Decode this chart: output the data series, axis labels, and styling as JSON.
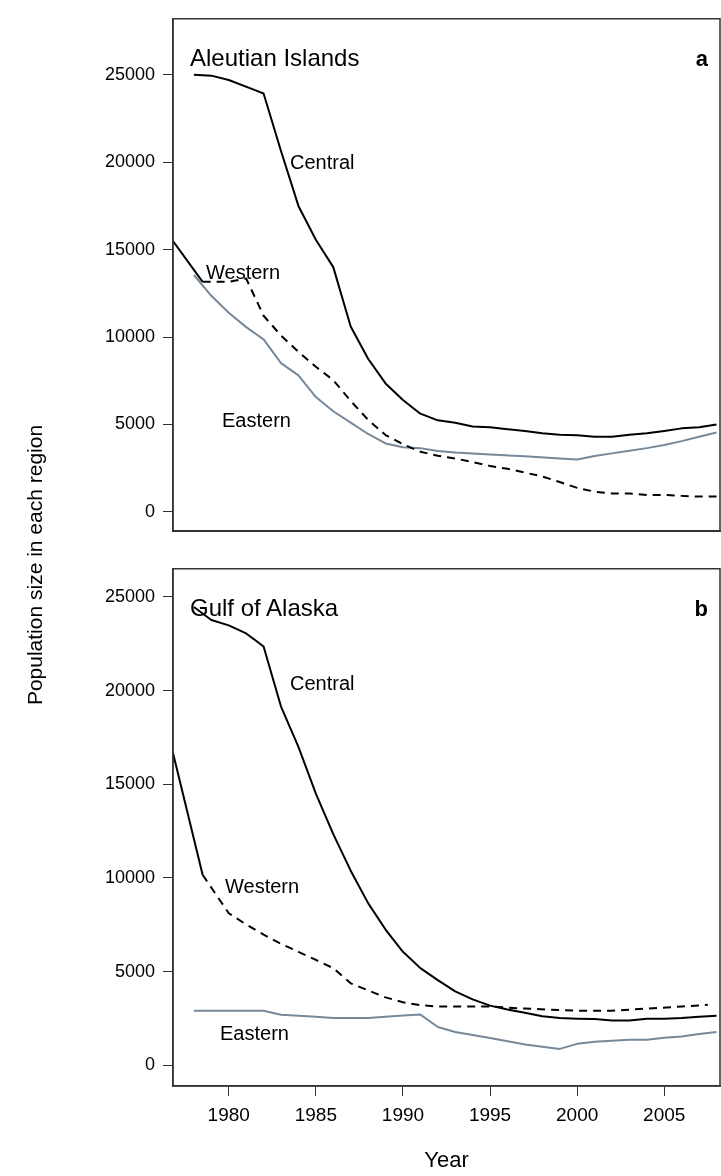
{
  "chart_data": [
    {
      "type": "line",
      "title": "Aleutian Islands",
      "ylabel": "Population size in each region",
      "annotations": [
        "a"
      ],
      "xlim": [
        1976.8,
        2008.2
      ],
      "xticks": [
        1980,
        1985,
        1990,
        1995,
        2000,
        2005
      ],
      "ylim": [
        -1100,
        28200
      ],
      "yticks": [
        0,
        5000,
        10000,
        15000,
        20000,
        25000
      ],
      "grid": false,
      "legend": false,
      "tick_labels": "y",
      "marker": "none",
      "series": [
        {
          "name": "Central",
          "color": "#000000",
          "line_style": "solid",
          "x": [
            1978,
            1979,
            1980,
            1982,
            1983,
            1984,
            1985,
            1986,
            1987,
            1988,
            1989,
            1990,
            1991,
            1992,
            1993,
            1994,
            1995,
            1996,
            1997,
            1998,
            1999,
            2000,
            2001,
            2002,
            2003,
            2004,
            2005,
            2006,
            2007,
            2008
          ],
          "values": [
            25000,
            24950,
            24700,
            23930,
            20640,
            17500,
            15570,
            14000,
            10600,
            8760,
            7350,
            6400,
            5620,
            5240,
            5100,
            4890,
            4840,
            4730,
            4630,
            4500,
            4410,
            4380,
            4300,
            4300,
            4410,
            4500,
            4630,
            4780,
            4850,
            5000
          ]
        },
        {
          "name": "Western",
          "color": "#000000",
          "line_style": "dashed",
          "x": [
            1978.5,
            1980,
            1981,
            1982,
            1983,
            1984,
            1985,
            1986,
            1987,
            1988,
            1989,
            1990,
            1991,
            1992,
            1993,
            1994,
            1995,
            1996,
            1997,
            1998,
            1999,
            2000,
            2001,
            2002,
            2003,
            2004,
            2005,
            2006,
            2007,
            2008
          ],
          "values": [
            13160,
            13160,
            13350,
            11220,
            10090,
            9160,
            8300,
            7540,
            6350,
            5270,
            4400,
            3870,
            3440,
            3220,
            3060,
            2850,
            2630,
            2470,
            2250,
            2030,
            1710,
            1380,
            1160,
            1060,
            1060,
            970,
            970,
            920,
            880,
            880
          ]
        },
        {
          "color": "#000000",
          "line_style": "solid",
          "x": [
            1976.8,
            1978.5
          ],
          "values": [
            15490,
            13160
          ]
        },
        {
          "name": "Eastern",
          "color": "#778899",
          "line_style": "solid",
          "x": [
            1978,
            1979,
            1980,
            1981,
            1982,
            1983,
            1984,
            1985,
            1986,
            1987,
            1988,
            1989,
            1990,
            1991,
            1992,
            1993,
            1995,
            1997,
            1999,
            2000,
            2001,
            2002,
            2003,
            2004,
            2005,
            2006,
            2007,
            2008
          ],
          "values": [
            13550,
            12360,
            11390,
            10570,
            9870,
            8510,
            7810,
            6570,
            5760,
            5110,
            4460,
            3920,
            3700,
            3650,
            3480,
            3400,
            3290,
            3180,
            3060,
            3000,
            3200,
            3350,
            3500,
            3650,
            3830,
            4050,
            4300,
            4540
          ]
        }
      ]
    },
    {
      "type": "line",
      "title": "Gulf of Alaska",
      "xlabel": "Year",
      "annotations": [
        "b"
      ],
      "xlim": [
        1976.8,
        2008.2
      ],
      "xticks": [
        1980,
        1985,
        1990,
        1995,
        2000,
        2005
      ],
      "ylim": [
        -1100,
        26500
      ],
      "yticks": [
        0,
        5000,
        10000,
        15000,
        20000,
        25000
      ],
      "grid": false,
      "legend": false,
      "marker": "none",
      "series": [
        {
          "name": "Central",
          "color": "#000000",
          "line_style": "solid",
          "x": [
            1978,
            1979,
            1980,
            1981,
            1982,
            1983,
            1984,
            1985,
            1986,
            1987,
            1988,
            1989,
            1990,
            1991,
            1992,
            1993,
            1994,
            1995,
            1996,
            1997,
            1998,
            1999,
            2000,
            2001,
            2002,
            2003,
            2004,
            2005,
            2006,
            2007,
            2008
          ],
          "values": [
            24460,
            23770,
            23480,
            23050,
            22350,
            19150,
            17000,
            14500,
            12340,
            10390,
            8660,
            7250,
            6060,
            5190,
            4550,
            3950,
            3520,
            3190,
            2980,
            2810,
            2620,
            2530,
            2490,
            2470,
            2400,
            2400,
            2490,
            2490,
            2530,
            2600,
            2650
          ]
        },
        {
          "name": "Western",
          "color": "#000000",
          "line_style": "dashed",
          "x": [
            1978.5,
            1980,
            1981,
            1982,
            1983,
            1984,
            1985,
            1986,
            1987,
            1988,
            1989,
            1990,
            1991,
            1992,
            1995,
            1997,
            2000,
            2002,
            2004,
            2006,
            2007.5
          ],
          "values": [
            10170,
            8120,
            7520,
            6980,
            6490,
            6060,
            5630,
            5190,
            4380,
            4000,
            3630,
            3370,
            3210,
            3140,
            3140,
            3030,
            2920,
            2920,
            3030,
            3140,
            3230
          ]
        },
        {
          "color": "#000000",
          "line_style": "solid",
          "x": [
            1976.8,
            1978.5
          ],
          "values": [
            16670,
            10170
          ]
        },
        {
          "name": "Eastern",
          "color": "#778899",
          "line_style": "solid",
          "x": [
            1978,
            1982,
            1983,
            1984,
            1985,
            1986,
            1987,
            1988,
            1989,
            1990,
            1991,
            1992,
            1993,
            1994,
            1995,
            1996,
            1997,
            1998,
            1999,
            2000,
            2001,
            2002,
            2003,
            2004,
            2005,
            2006,
            2007,
            2008
          ],
          "values": [
            2920,
            2920,
            2700,
            2650,
            2600,
            2530,
            2530,
            2530,
            2600,
            2660,
            2710,
            2050,
            1780,
            1620,
            1460,
            1290,
            1120,
            990,
            880,
            1150,
            1260,
            1320,
            1370,
            1370,
            1480,
            1540,
            1670,
            1780
          ]
        }
      ]
    }
  ]
}
